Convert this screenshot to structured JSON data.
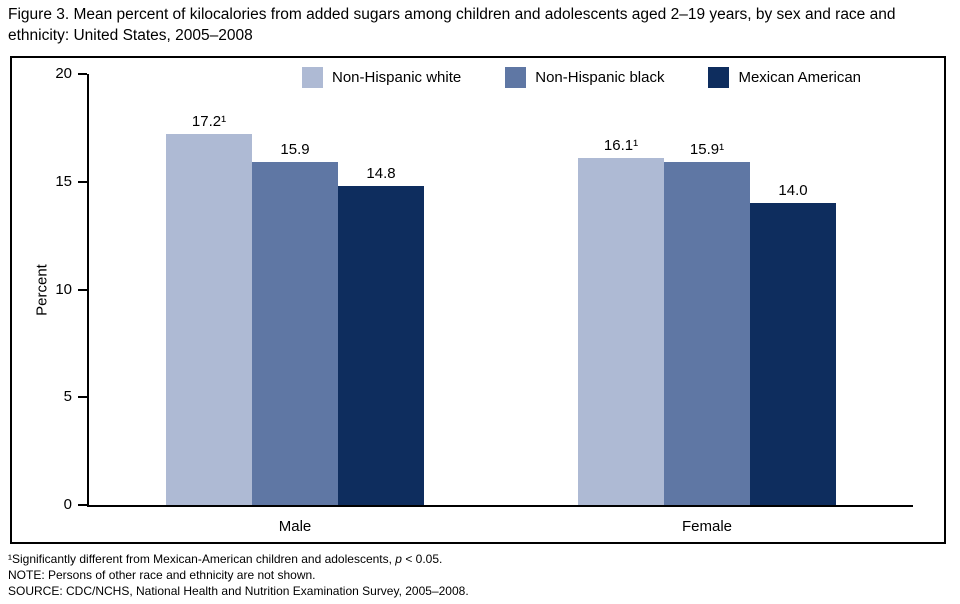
{
  "title": "Figure 3. Mean percent of kilocalories from added sugars among children and adolescents aged 2–19 years, by sex and race and ethnicity: United States, 2005–2008",
  "chart_data": {
    "type": "bar",
    "categories": [
      "Male",
      "Female"
    ],
    "series": [
      {
        "name": "Non-Hispanic white",
        "color": "#aebad4",
        "values": [
          17.2,
          16.1
        ],
        "bar_labels": [
          "17.2¹",
          "16.1¹"
        ]
      },
      {
        "name": "Non-Hispanic black",
        "color": "#5f77a4",
        "values": [
          15.9,
          15.9
        ],
        "bar_labels": [
          "15.9",
          "15.9¹"
        ]
      },
      {
        "name": "Mexican American",
        "color": "#0e2d5e",
        "values": [
          14.8,
          14.0
        ],
        "bar_labels": [
          "14.8",
          "14.0"
        ]
      }
    ],
    "ylabel": "Percent",
    "ylim": [
      0,
      20
    ],
    "yticks": [
      0,
      5,
      10,
      15,
      20
    ],
    "legend_position": "top",
    "grid": false
  },
  "footnotes": [
    {
      "pre": "¹Significantly different from Mexican-American children and adolescents, ",
      "italic": "p",
      "post": " < 0.05."
    },
    {
      "pre": "NOTE: Persons of other race and ethnicity are not shown.",
      "italic": "",
      "post": ""
    },
    {
      "pre": "SOURCE: CDC/NCHS, National Health and Nutrition Examination Survey, 2005–2008.",
      "italic": "",
      "post": ""
    }
  ]
}
